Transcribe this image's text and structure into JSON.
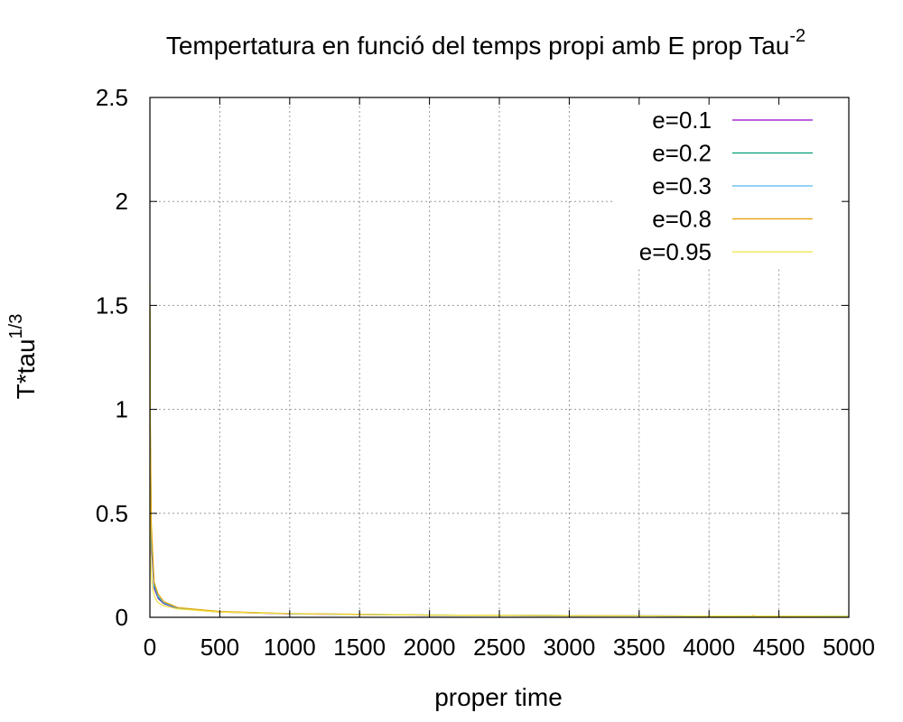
{
  "chart_data": {
    "type": "line",
    "title_main": "Tempertatura en funció del temps propi amb E prop Tau",
    "title_sup": "-2",
    "xlabel": "proper time",
    "ylabel_main": "T*tau",
    "ylabel_sup": "1/3",
    "xlim": [
      0,
      5000
    ],
    "ylim": [
      0,
      2.5
    ],
    "x_ticks": [
      0,
      500,
      1000,
      1500,
      2000,
      2500,
      3000,
      3500,
      4000,
      4500,
      5000
    ],
    "y_ticks": [
      0,
      0.5,
      1,
      1.5,
      2,
      2.5
    ],
    "y_tick_labels": [
      "0",
      "0.5",
      "1",
      "1.5",
      "2",
      "2.5"
    ],
    "grid": true,
    "legend_position": "top-right",
    "series": [
      {
        "name": "e=0.1",
        "color": "#9400d3",
        "x": [
          1,
          3,
          10,
          30,
          60,
          100,
          200,
          500,
          1000,
          2000,
          3000,
          4000,
          5000
        ],
        "y": [
          1.2,
          0.8,
          0.35,
          0.14,
          0.09,
          0.065,
          0.042,
          0.025,
          0.016,
          0.01,
          0.008,
          0.006,
          0.005
        ]
      },
      {
        "name": "e=0.2",
        "color": "#009e73",
        "x": [
          1,
          3,
          10,
          30,
          60,
          100,
          200,
          500,
          1000,
          2000,
          3000,
          4000,
          5000
        ],
        "y": [
          1.3,
          0.85,
          0.38,
          0.15,
          0.095,
          0.068,
          0.044,
          0.026,
          0.017,
          0.011,
          0.008,
          0.006,
          0.005
        ]
      },
      {
        "name": "e=0.3",
        "color": "#56b4e9",
        "x": [
          1,
          3,
          10,
          30,
          60,
          100,
          200,
          500,
          1000,
          2000,
          3000,
          4000,
          5000
        ],
        "y": [
          1.4,
          0.9,
          0.4,
          0.16,
          0.1,
          0.07,
          0.045,
          0.027,
          0.017,
          0.011,
          0.008,
          0.006,
          0.005
        ]
      },
      {
        "name": "e=0.8",
        "color": "#e69f00",
        "x": [
          1,
          3,
          10,
          30,
          60,
          100,
          200,
          500,
          1000,
          2000,
          3000,
          4000,
          4300,
          4320,
          4350,
          5000
        ],
        "y": [
          1.5,
          0.95,
          0.45,
          0.17,
          0.11,
          0.075,
          0.047,
          0.028,
          0.018,
          0.011,
          0.008,
          0.006,
          0.006,
          0.008,
          0.003,
          0.003
        ]
      },
      {
        "name": "e=0.95",
        "color": "#f0e442",
        "x": [
          0,
          2,
          5,
          10,
          20,
          40,
          60,
          100,
          200,
          500,
          1000,
          1500,
          2000,
          3000,
          4000,
          5000
        ],
        "y": [
          1.6,
          0.62,
          0.3,
          0.2,
          0.13,
          0.09,
          0.07,
          0.055,
          0.04,
          0.025,
          0.017,
          0.013,
          0.011,
          0.008,
          0.006,
          0.005
        ]
      }
    ]
  }
}
